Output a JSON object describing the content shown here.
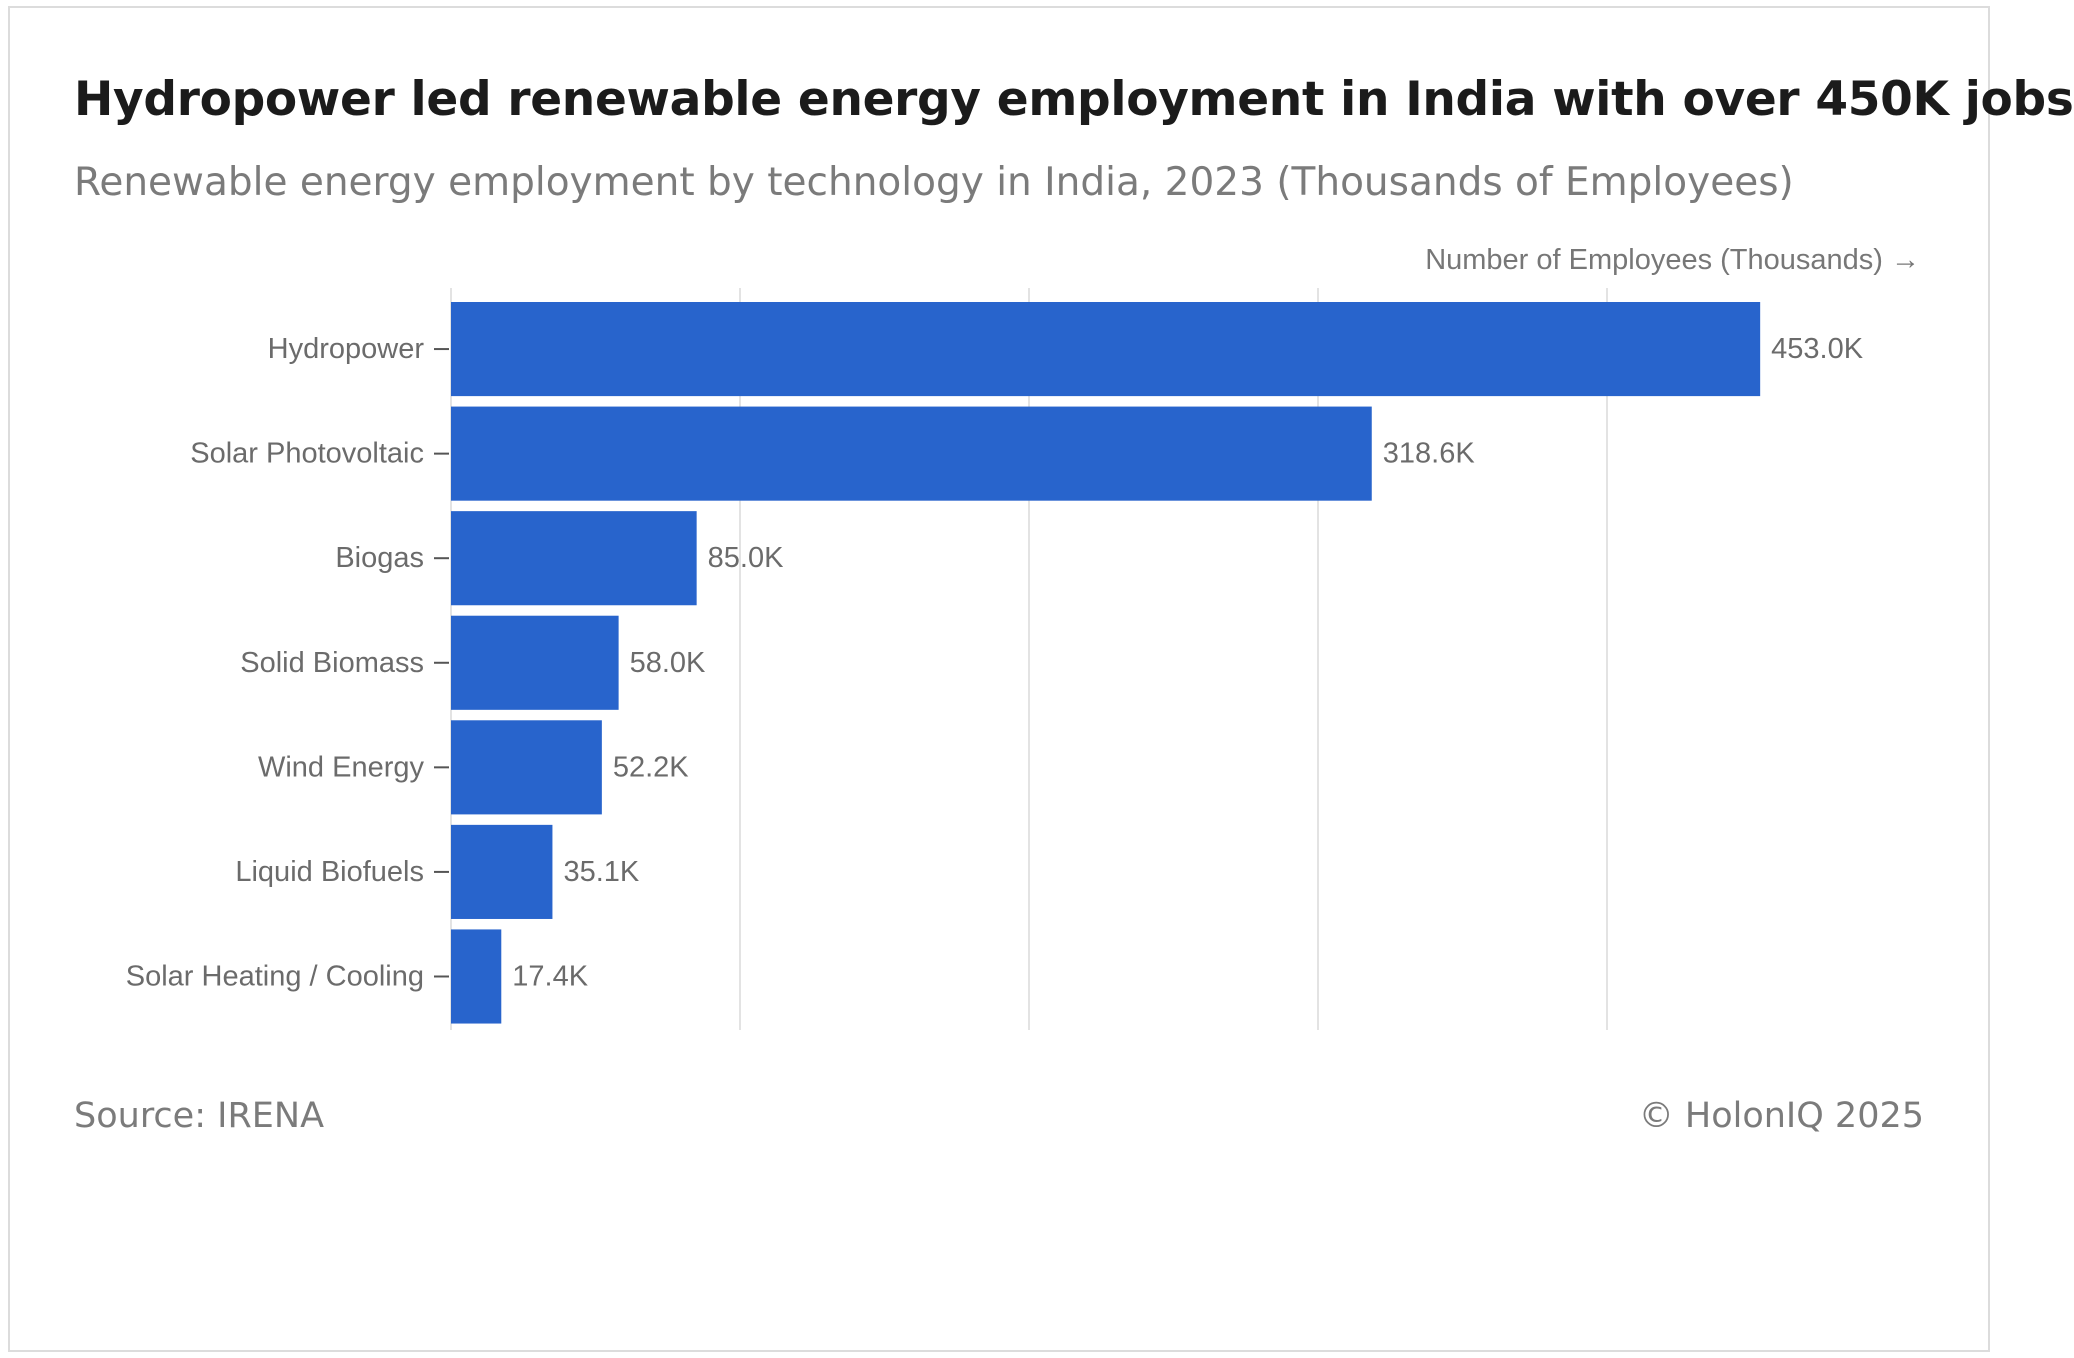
{
  "header": {
    "title": "Hydropower led renewable energy employment in India with over 450K jobs",
    "subtitle": "Renewable energy employment by technology in India, 2023 (Thousands of Employees)"
  },
  "footer": {
    "source": "Source: IRENA",
    "copyright": "© HolonIQ 2025"
  },
  "colors": {
    "bar": "#2864cc",
    "grid": "#e3e3e3",
    "tick": "#555555"
  },
  "chart_data": {
    "type": "bar",
    "orientation": "horizontal",
    "title": "Hydropower led renewable energy employment in India with over 450K jobs",
    "subtitle": "Renewable energy employment by technology in India, 2023 (Thousands of Employees)",
    "xlabel": "Number of Employees (Thousands) →",
    "ylabel": "",
    "categories": [
      "Hydropower",
      "Solar Photovoltaic",
      "Biogas",
      "Solid Biomass",
      "Wind Energy",
      "Liquid Biofuels",
      "Solar Heating / Cooling"
    ],
    "values": [
      453.0,
      318.6,
      85.0,
      58.0,
      52.2,
      35.1,
      17.4
    ],
    "data_labels": [
      "453.0K",
      "318.6K",
      "85.0K",
      "58.0K",
      "52.2K",
      "35.1K",
      "17.4K"
    ],
    "xlim": [
      0,
      500
    ],
    "gridlines": [
      0,
      100,
      200,
      300,
      400
    ],
    "grid": true
  }
}
